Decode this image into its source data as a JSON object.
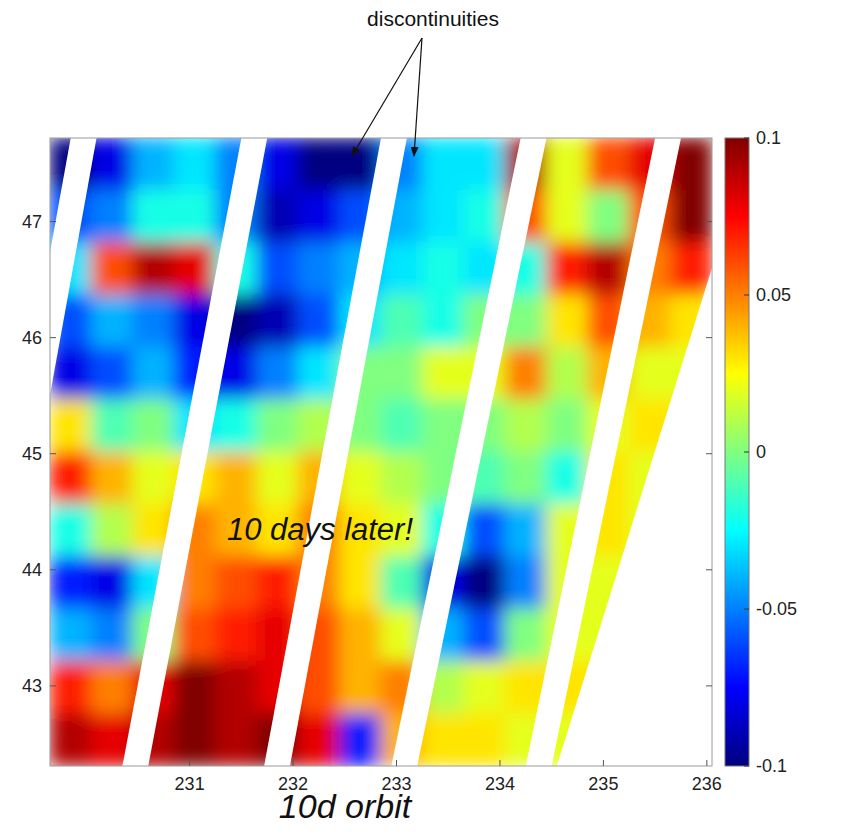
{
  "chart_data": {
    "type": "heatmap",
    "annotations": [
      {
        "text": "discontinuities"
      },
      {
        "text": "10 days later!"
      }
    ],
    "xlabel": "10d orbit",
    "x": [
      229.85,
      230.25,
      230.65,
      231.05,
      231.45,
      231.85,
      232.25,
      232.65,
      233.05,
      233.45,
      233.85,
      234.25,
      234.65,
      235.05,
      235.45,
      235.85
    ],
    "y": [
      47.496,
      47.045,
      46.594,
      46.143,
      45.692,
      45.241,
      44.79,
      44.339,
      43.888,
      43.437,
      42.986,
      42.535
    ],
    "cells": [
      [
        -0.1,
        -0.08,
        -0.04,
        -0.03,
        -0.05,
        -0.08,
        -0.1,
        -0.1,
        -0.05,
        -0.03,
        -0.03,
        0.09,
        0.02,
        0.06,
        0.08,
        0.1
      ],
      [
        -0.06,
        -0.05,
        -0.02,
        -0.02,
        -0.05,
        -0.09,
        -0.08,
        -0.06,
        -0.04,
        -0.03,
        -0.02,
        0.06,
        0.02,
        0.0,
        0.06,
        0.1
      ],
      [
        -0.03,
        0.06,
        0.09,
        0.08,
        -0.02,
        -0.06,
        -0.05,
        -0.04,
        -0.03,
        -0.02,
        -0.03,
        -0.02,
        0.07,
        0.09,
        0.05,
        0.07
      ],
      [
        -0.06,
        -0.04,
        -0.05,
        -0.08,
        -0.1,
        -0.09,
        -0.06,
        -0.03,
        -0.01,
        -0.02,
        0.0,
        0.0,
        0.03,
        0.06,
        0.04,
        0.03
      ],
      [
        -0.08,
        -0.06,
        -0.04,
        -0.07,
        -0.08,
        -0.05,
        -0.03,
        0.0,
        0.0,
        0.02,
        0.02,
        0.05,
        0.01,
        0.04,
        0.02,
        0.02
      ],
      [
        0.03,
        -0.01,
        0.0,
        -0.03,
        -0.02,
        0.0,
        0.01,
        0.0,
        -0.01,
        0.0,
        0.0,
        0.01,
        0.0,
        0.02,
        0.03,
        0.03
      ],
      [
        0.07,
        0.04,
        0.02,
        0.03,
        0.04,
        0.02,
        0.04,
        0.02,
        0.01,
        0.0,
        -0.01,
        0.0,
        -0.02,
        0.03,
        0.02,
        0.02
      ],
      [
        -0.02,
        0.01,
        0.03,
        0.05,
        0.04,
        0.03,
        0.05,
        0.03,
        0.02,
        -0.02,
        -0.06,
        -0.04,
        0.02,
        0.03,
        0.02,
        0.02
      ],
      [
        -0.07,
        -0.08,
        -0.03,
        0.05,
        0.06,
        0.07,
        0.05,
        0.03,
        -0.01,
        -0.08,
        -0.1,
        -0.05,
        0.02,
        0.02,
        0.02,
        0.02
      ],
      [
        -0.04,
        -0.05,
        0.0,
        0.06,
        0.07,
        0.08,
        0.06,
        0.04,
        0.02,
        -0.04,
        -0.06,
        0.0,
        0.02,
        0.02,
        0.02,
        0.02
      ],
      [
        0.07,
        0.05,
        0.08,
        0.1,
        0.09,
        0.08,
        0.06,
        0.04,
        0.05,
        0.01,
        0.02,
        0.03,
        0.03,
        0.03,
        0.03,
        0.03
      ],
      [
        0.09,
        0.08,
        0.09,
        0.1,
        0.09,
        0.1,
        0.08,
        -0.07,
        0.04,
        0.03,
        0.03,
        0.02,
        0.02,
        0.02,
        0.02,
        0.02
      ]
    ],
    "swath_gaps": [
      {
        "south": [
          228.75,
          229.0
        ],
        "north": [
          229.85,
          230.1
        ]
      },
      {
        "south": [
          230.35,
          230.6
        ],
        "north": [
          231.5,
          231.75
        ]
      },
      {
        "south": [
          231.72,
          231.97
        ],
        "north": [
          232.85,
          233.1
        ]
      },
      {
        "south": [
          232.95,
          233.2
        ],
        "north": [
          234.2,
          234.45
        ]
      },
      {
        "south": [
          234.25,
          234.5
        ],
        "north": [
          235.5,
          235.75
        ]
      }
    ],
    "east_edge": [
      [
        234.55,
        42.31
      ],
      [
        236.05,
        46.6
      ]
    ],
    "xlim": [
      229.65,
      236.05
    ],
    "ylim": [
      42.31,
      47.72
    ],
    "xticks": [
      231,
      232,
      233,
      234,
      235,
      236
    ],
    "yticks": [
      43,
      44,
      45,
      46,
      47
    ],
    "colorbar": {
      "range": [
        -0.1,
        0.1
      ],
      "ticks": [
        -0.1,
        -0.05,
        0,
        0.05,
        0.1
      ]
    }
  }
}
